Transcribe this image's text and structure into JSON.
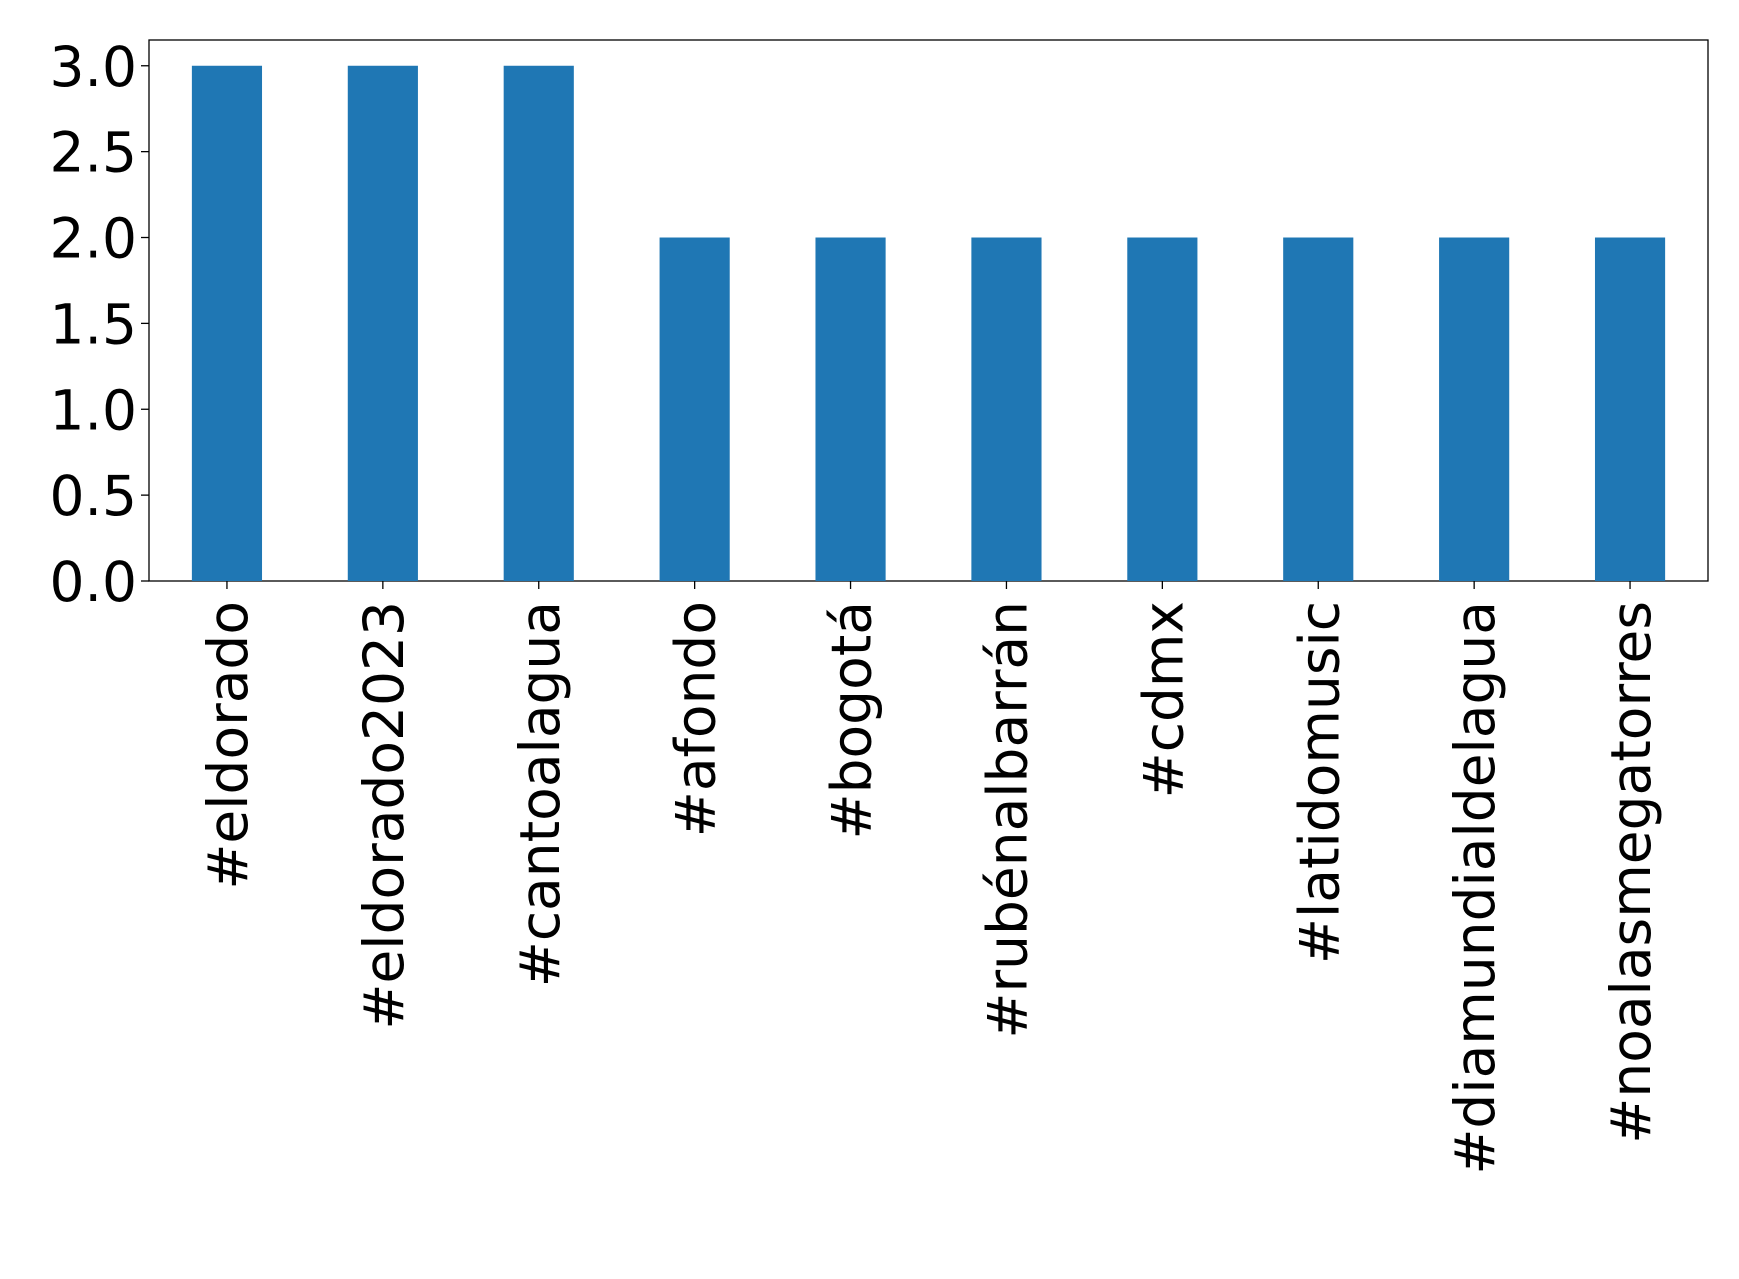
{
  "chart_data": {
    "type": "bar",
    "categories": [
      "#eldorado",
      "#eldorado2023",
      "#cantoalagua",
      "#afondo",
      "#bogotá",
      "#rubénalbarrán",
      "#cdmx",
      "#latidomusic",
      "#diamundialdelagua",
      "#noalasmegatorres"
    ],
    "values": [
      3,
      3,
      3,
      2,
      2,
      2,
      2,
      2,
      2,
      2
    ],
    "color": "#1f77b4",
    "ylim": [
      0,
      3.15
    ],
    "yticks": [
      {
        "value": 0,
        "label": "0.0"
      },
      {
        "value": 0.5,
        "label": "0.5"
      },
      {
        "value": 1,
        "label": "1.0"
      },
      {
        "value": 1.5,
        "label": "1.5"
      },
      {
        "value": 2,
        "label": "2.0"
      },
      {
        "value": 2.5,
        "label": "2.5"
      },
      {
        "value": 3,
        "label": "3.0"
      }
    ],
    "grid": false
  }
}
